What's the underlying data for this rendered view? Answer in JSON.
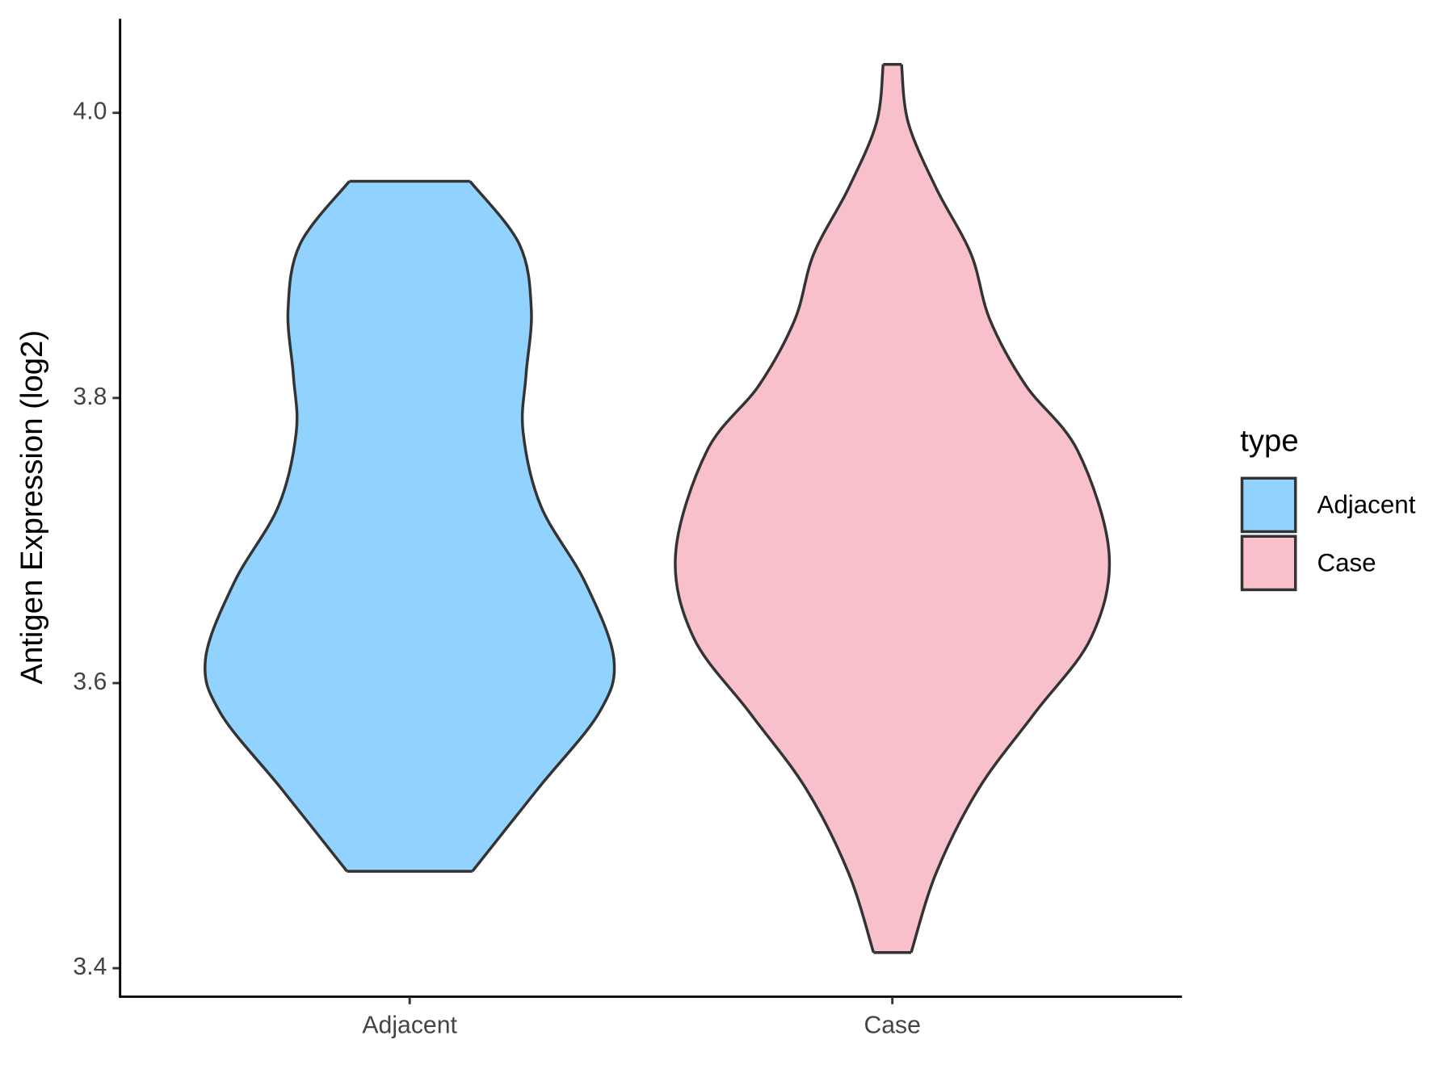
{
  "chart_data": {
    "type": "violin",
    "y_label": "Antigen Expression (log2)",
    "categories": [
      "Adjacent",
      "Case"
    ],
    "legend_title": "type",
    "legend_position": "right",
    "series": [
      {
        "name": "Adjacent",
        "color": "#92d2fe",
        "y": [
          3.952,
          3.908,
          3.862,
          3.816,
          3.776,
          3.724,
          3.671,
          3.617,
          3.579,
          3.526,
          3.468
        ],
        "width": [
          0.125,
          0.227,
          0.252,
          0.241,
          0.235,
          0.272,
          0.363,
          0.423,
          0.392,
          0.266,
          0.13
        ]
      },
      {
        "name": "Case",
        "color": "#f7c0cb",
        "y": [
          4.034,
          3.993,
          3.947,
          3.901,
          3.855,
          3.809,
          3.763,
          3.691,
          3.632,
          3.579,
          3.526,
          3.467,
          3.411
        ],
        "width": [
          0.019,
          0.033,
          0.091,
          0.163,
          0.202,
          0.276,
          0.384,
          0.449,
          0.412,
          0.295,
          0.179,
          0.091,
          0.039
        ]
      }
    ],
    "ylim": [
      3.38,
      4.066
    ],
    "yticks": [
      {
        "value": 3.4,
        "label": "3.4"
      },
      {
        "value": 3.6,
        "label": "3.6"
      },
      {
        "value": 3.8,
        "label": "3.8"
      },
      {
        "value": 4.0,
        "label": "4.0"
      }
    ],
    "xlim": [
      0.4,
      2.6
    ]
  }
}
